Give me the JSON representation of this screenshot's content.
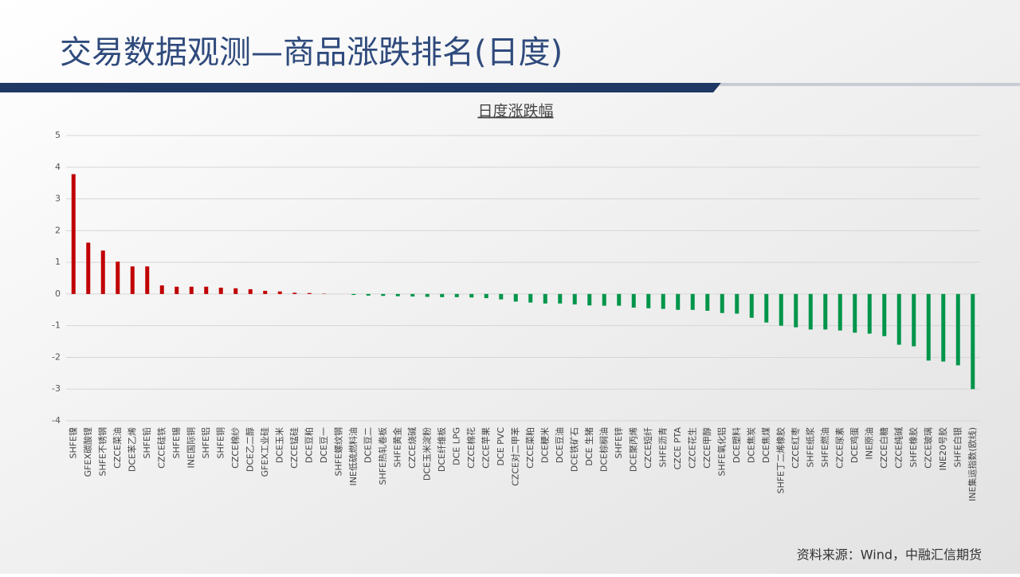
{
  "header": {
    "title": "交易数据观测—商品涨跌排名(日度)"
  },
  "chart_data": {
    "type": "bar",
    "title": "日度涨跌幅",
    "categories": [
      "SHFE镍",
      "GFEX碳酸锂",
      "SHFE不锈钢",
      "CZCE菜油",
      "DCE苯乙烯",
      "SHFE铅",
      "CZCE硅铁",
      "SHFE锡",
      "INE国际铜",
      "SHFE铝",
      "SHFE铜",
      "CZCE棉纱",
      "DCE乙二醇",
      "GFEX工业硅",
      "DCE玉米",
      "CZCE锰硅",
      "DCE豆粕",
      "DCE豆一",
      "SHFE螺纹钢",
      "INE低硫燃料油",
      "DCE豆二",
      "SHFE热轧卷板",
      "SHFE黄金",
      "CZCE烧碱",
      "DCE玉米淀粉",
      "DCE纤维板",
      "DCE LPG",
      "CZCE棉花",
      "CZCE苹果",
      "DCE PVC",
      "CZCE对二甲苯",
      "CZCE菜粕",
      "DCE粳米",
      "DCE豆油",
      "DCE铁矿石",
      "DCE 生猪",
      "DCE棕榈油",
      "SHFE锌",
      "DCE聚丙烯",
      "CZCE短纤",
      "SHFE沥青",
      "CZCE PTA",
      "CZCE花生",
      "CZCE甲醇",
      "SHFE氧化铝",
      "DCE塑料",
      "DCE焦炭",
      "DCE焦煤",
      "SHFE丁二烯橡胶",
      "CZCE红枣",
      "SHFE纸浆",
      "SHFE燃油",
      "CZCE尿素",
      "DCE鸡蛋",
      "INE原油",
      "CZCE白糖",
      "CZCE纯碱",
      "SHFE橡胶",
      "CZCE玻璃",
      "INE20号胶",
      "SHFE白银",
      "INE集运指数(欧线)"
    ],
    "values": [
      3.78,
      1.62,
      1.37,
      1.02,
      0.87,
      0.87,
      0.27,
      0.23,
      0.23,
      0.23,
      0.2,
      0.18,
      0.15,
      0.1,
      0.08,
      0.04,
      0.03,
      0.01,
      0,
      -0.03,
      -0.05,
      -0.06,
      -0.07,
      -0.08,
      -0.09,
      -0.1,
      -0.1,
      -0.11,
      -0.13,
      -0.17,
      -0.24,
      -0.27,
      -0.3,
      -0.3,
      -0.33,
      -0.36,
      -0.37,
      -0.37,
      -0.43,
      -0.45,
      -0.47,
      -0.5,
      -0.5,
      -0.53,
      -0.6,
      -0.62,
      -0.75,
      -0.9,
      -1.0,
      -1.05,
      -1.12,
      -1.12,
      -1.15,
      -1.22,
      -1.25,
      -1.33,
      -1.6,
      -1.65,
      -2.1,
      -2.13,
      -2.25,
      -3.0
    ],
    "color_positive": "#c00000",
    "color_negative": "#00954a",
    "ylim": [
      -4,
      5
    ],
    "yticks": [
      -4,
      -3,
      -2,
      -1,
      0,
      1,
      2,
      3,
      4,
      5
    ],
    "grid": true
  },
  "footer": {
    "source": "资料来源：Wind，中融汇信期货"
  }
}
